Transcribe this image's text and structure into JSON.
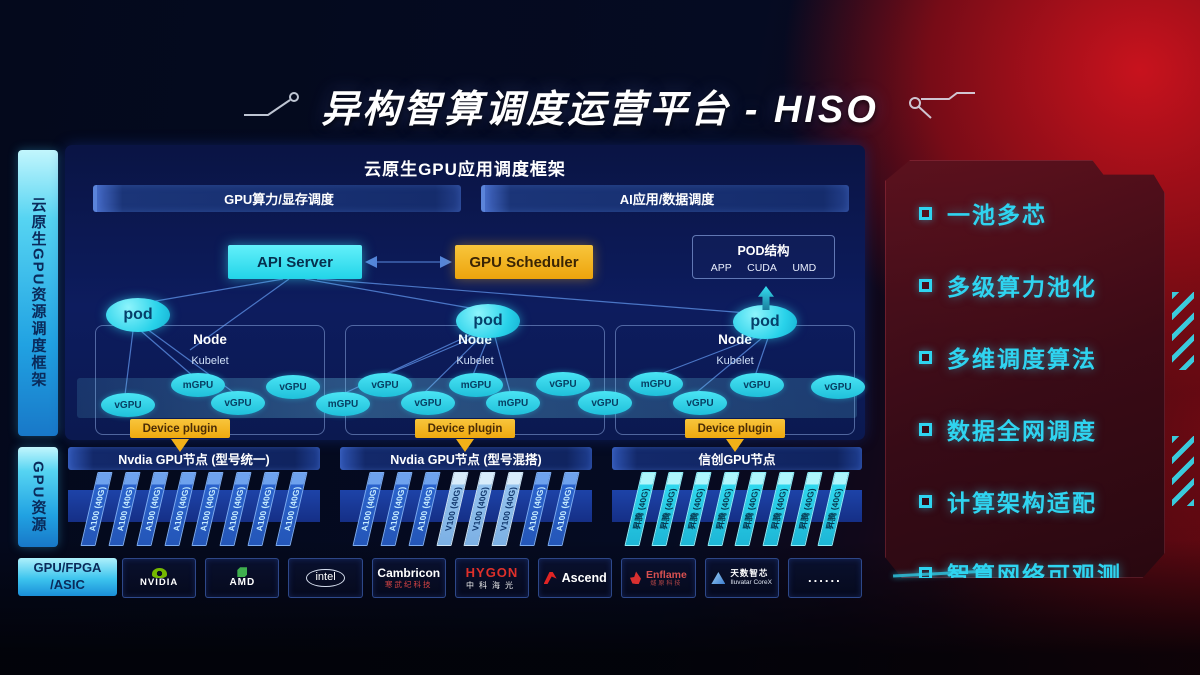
{
  "title": "异构智算调度运营平台 - HISO",
  "left_sidebar": {
    "framework": "云原生GPU资源调度框架",
    "gpu_resource": "GPU资源",
    "chip_line1": "GPU/FPGA",
    "chip_line2": "/ASIC"
  },
  "scheduler_panel": {
    "title": "云原生GPU应用调度框架",
    "bar_left": "GPU算力/显存调度",
    "bar_right": "AI应用/数据调度",
    "api_server": "API Server",
    "gpu_scheduler": "GPU Scheduler",
    "pod_structure": {
      "title": "POD结构",
      "items": [
        "APP",
        "CUDA",
        "UMD"
      ]
    },
    "pod_label": "pod",
    "node_label": "Node",
    "kubelet_label": "Kubelet",
    "device_plugin_label": "Device plugin",
    "gpu_units": [
      "vGPU",
      "mGPU",
      "vGPU",
      "vGPU",
      "mGPU",
      "vGPU",
      "vGPU",
      "mGPU",
      "mGPU",
      "vGPU",
      "vGPU",
      "mGPU",
      "vGPU",
      "vGPU",
      "vGPU"
    ]
  },
  "gpu_nodes": {
    "groups": [
      {
        "header": "Nvdia GPU节点 (型号统一)",
        "variants": [
          "blue",
          "blue",
          "blue",
          "blue",
          "blue",
          "blue",
          "blue",
          "blue"
        ],
        "cards": [
          "A100 (40G)",
          "A100 (40G)",
          "A100 (40G)",
          "A100 (40G)",
          "A100 (40G)",
          "A100 (40G)",
          "A100 (40G)",
          "A100 (40G)"
        ]
      },
      {
        "header": "Nvdia GPU节点 (型号混搭)",
        "variants": [
          "blue",
          "blue",
          "blue",
          "light",
          "light",
          "light",
          "blue",
          "blue"
        ],
        "cards": [
          "A100 (40G)",
          "A100 (40G)",
          "A100 (40G)",
          "V100 (40G)",
          "V100 (40G)",
          "V100 (40G)",
          "A100 (40G)",
          "A100 (40G)"
        ]
      },
      {
        "header": "信创GPU节点",
        "variants": [
          "cyan",
          "cyan",
          "cyan",
          "cyan",
          "cyan",
          "cyan",
          "cyan",
          "cyan"
        ],
        "cards": [
          "昇腾 (40G)",
          "昇腾 (40G)",
          "昇腾 (40G)",
          "昇腾 (40G)",
          "昇腾 (40G)",
          "昇腾 (40G)",
          "昇腾 (40G)",
          "昇腾 (40G)"
        ]
      }
    ]
  },
  "vendor_row": {
    "logos": [
      {
        "name": "NVIDIA"
      },
      {
        "name": "AMD"
      },
      {
        "name": "intel"
      },
      {
        "name": "Cambricon",
        "sub": "寒武纪科技"
      },
      {
        "name": "HYGON",
        "sub": "中科海光"
      },
      {
        "name": "Ascend"
      },
      {
        "name": "Enflame",
        "sub": "燧原科技"
      },
      {
        "name": "天数智芯",
        "sub": "Iluvatar CoreX"
      },
      {
        "name": "......"
      }
    ]
  },
  "features": [
    "一池多芯",
    "多级算力池化",
    "多维调度算法",
    "数据全网调度",
    "计算架构适配",
    "智算网络可观测"
  ],
  "colors": {
    "accent_cyan": "#2fd4f0",
    "accent_yellow": "#f2b018",
    "panel_blue": "#0d1c5e",
    "brand_red": "#c01320"
  }
}
